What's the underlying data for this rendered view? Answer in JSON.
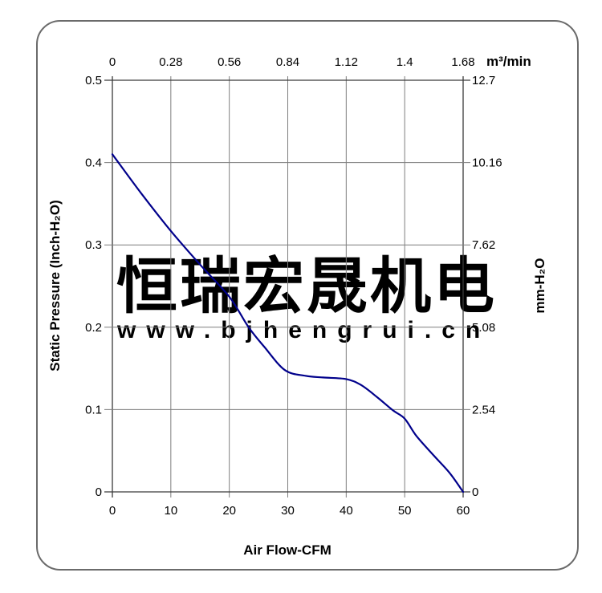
{
  "watermark": {
    "company": "恒瑞宏晟机电",
    "url": "www.bjhengrui.cn",
    "color": "#ededed"
  },
  "colors": {
    "curve": "#00008B",
    "grid_interior": "#7e7e7e",
    "grid_frame": "#3a3a3a",
    "text": "#000000",
    "card_border": "#6b6b6b"
  },
  "chart_data": {
    "type": "line",
    "title": "",
    "grid": true,
    "legend": "none",
    "axes": {
      "bottom": {
        "label": "Air Flow-CFM",
        "ticks": [
          "0",
          "10",
          "20",
          "30",
          "40",
          "50",
          "60"
        ],
        "range": [
          0,
          60
        ]
      },
      "top": {
        "label": "m³/min",
        "ticks": [
          "0",
          "0.28",
          "0.56",
          "0.84",
          "1.12",
          "1.4",
          "1.68"
        ]
      },
      "left": {
        "label": "Static Pressure (Inch-H₂O)",
        "ticks": [
          "0.5",
          "0.4",
          "0.3",
          "0.2",
          "0.1",
          "0"
        ],
        "range": [
          0,
          0.5
        ]
      },
      "right": {
        "label": "mm-H₂O",
        "ticks": [
          "12.7",
          "10.16",
          "7.62",
          "5.08",
          "2.54",
          "0"
        ]
      }
    },
    "series": [
      {
        "name": "static-pressure-vs-airflow",
        "color": "#00008B",
        "points": [
          [
            0,
            0.41
          ],
          [
            5,
            0.362
          ],
          [
            10,
            0.317
          ],
          [
            15,
            0.276
          ],
          [
            20,
            0.237
          ],
          [
            23.3,
            0.2
          ],
          [
            26,
            0.176
          ],
          [
            29.5,
            0.148
          ],
          [
            33,
            0.141
          ],
          [
            36,
            0.139
          ],
          [
            40,
            0.137
          ],
          [
            42.5,
            0.13
          ],
          [
            45.3,
            0.115
          ],
          [
            48,
            0.099
          ],
          [
            50,
            0.089
          ],
          [
            52,
            0.068
          ],
          [
            55,
            0.044
          ],
          [
            57.7,
            0.023
          ],
          [
            60,
            0
          ]
        ]
      }
    ]
  }
}
